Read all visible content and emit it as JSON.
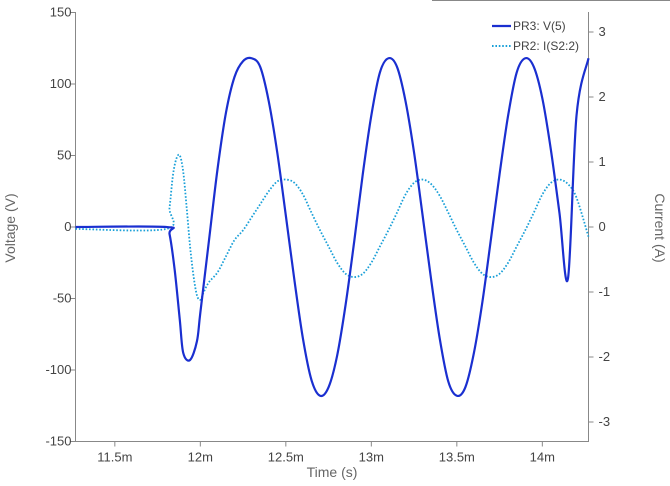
{
  "chart_data": {
    "type": "line",
    "xlabel": "Time (s)",
    "ylabel_left": "Voltage (V)",
    "ylabel_right": "Current (A)",
    "xlim": [
      0.01127,
      0.01427
    ],
    "ylim_left": [
      -150,
      150
    ],
    "ylim_right": [
      -3.3,
      3.3
    ],
    "x_ticks": [
      0.0115,
      0.012,
      0.0125,
      0.013,
      0.0135,
      0.014
    ],
    "x_tick_labels": [
      "11.5m",
      "12m",
      "12.5m",
      "13m",
      "13.5m",
      "14m"
    ],
    "y_left_ticks": [
      150,
      100,
      50,
      0,
      -50,
      -100,
      -150
    ],
    "y_left_tick_labels": [
      "150",
      "100",
      "50",
      "0",
      "-50",
      "-100",
      "-150"
    ],
    "y_right_ticks": [
      3,
      2,
      1,
      0,
      -1,
      -2,
      -3
    ],
    "y_right_tick_labels": [
      "3",
      "2",
      "1",
      "0",
      "-1",
      "-2",
      "-3"
    ],
    "grid": "none",
    "legend_position": "top-right",
    "series": [
      {
        "name": "PR3: V(5)",
        "axis": "left",
        "color": "#1a2fd0",
        "dash": "solid",
        "x": [
          0.01127,
          0.0118,
          0.01182,
          0.01185,
          0.01188,
          0.0119,
          0.01194,
          0.01198,
          0.012,
          0.01205,
          0.0121,
          0.01215,
          0.0122,
          0.01225,
          0.0123,
          0.01235,
          0.0124,
          0.01245,
          0.0125,
          0.01255,
          0.0126,
          0.01265,
          0.0127,
          0.01275,
          0.0128,
          0.01285,
          0.0129,
          0.01295,
          0.013,
          0.01305,
          0.0131,
          0.01315,
          0.0132,
          0.01325,
          0.0133,
          0.01335,
          0.0134,
          0.01345,
          0.0135,
          0.01355,
          0.0136,
          0.01365,
          0.0137,
          0.01375,
          0.0138,
          0.01385,
          0.0139,
          0.01395,
          0.014,
          0.01405,
          0.0141,
          0.01415,
          0.0142,
          0.01427
        ],
        "values": [
          0,
          0,
          -5,
          -30,
          -65,
          -88,
          -93,
          -80,
          -60,
          -10,
          40,
          80,
          105,
          116,
          118,
          112,
          88,
          52,
          8,
          -37,
          -78,
          -107,
          -118,
          -112,
          -90,
          -54,
          -10,
          37,
          78,
          108,
          118,
          112,
          88,
          52,
          8,
          -37,
          -78,
          -108,
          -118,
          -112,
          -88,
          -52,
          -8,
          37,
          78,
          108,
          118,
          112,
          90,
          54,
          10,
          -36,
          78,
          118
        ]
      },
      {
        "name": "PR2: I(S2:2)",
        "axis": "right",
        "color": "#1aa0d8",
        "dash": "dotted",
        "x": [
          0.01127,
          0.0118,
          0.01182,
          0.01184,
          0.01186,
          0.01188,
          0.0119,
          0.01192,
          0.01194,
          0.01196,
          0.01198,
          0.012,
          0.01202,
          0.01205,
          0.0121,
          0.01215,
          0.0122,
          0.01225,
          0.0123,
          0.01235,
          0.0124,
          0.01245,
          0.0125,
          0.01255,
          0.0126,
          0.01265,
          0.0127,
          0.01275,
          0.0128,
          0.01285,
          0.0129,
          0.01295,
          0.013,
          0.01305,
          0.0131,
          0.01315,
          0.0132,
          0.01325,
          0.0133,
          0.01335,
          0.0134,
          0.01345,
          0.0135,
          0.01355,
          0.0136,
          0.01365,
          0.0137,
          0.01375,
          0.0138,
          0.01385,
          0.0139,
          0.01395,
          0.014,
          0.01405,
          0.0141,
          0.01415,
          0.0142,
          0.01427
        ],
        "values": [
          -0.03,
          -0.03,
          0.3,
          0.8,
          1.05,
          1.1,
          0.85,
          0.3,
          -0.3,
          -0.75,
          -1.05,
          -1.12,
          -1.0,
          -0.85,
          -0.7,
          -0.45,
          -0.2,
          -0.05,
          0.15,
          0.35,
          0.55,
          0.7,
          0.73,
          0.68,
          0.5,
          0.22,
          -0.05,
          -0.3,
          -0.55,
          -0.72,
          -0.77,
          -0.72,
          -0.55,
          -0.3,
          -0.05,
          0.22,
          0.5,
          0.68,
          0.73,
          0.66,
          0.48,
          0.22,
          -0.05,
          -0.3,
          -0.55,
          -0.72,
          -0.77,
          -0.72,
          -0.55,
          -0.3,
          -0.05,
          0.22,
          0.5,
          0.68,
          0.73,
          0.66,
          0.45,
          -0.15
        ]
      }
    ]
  }
}
